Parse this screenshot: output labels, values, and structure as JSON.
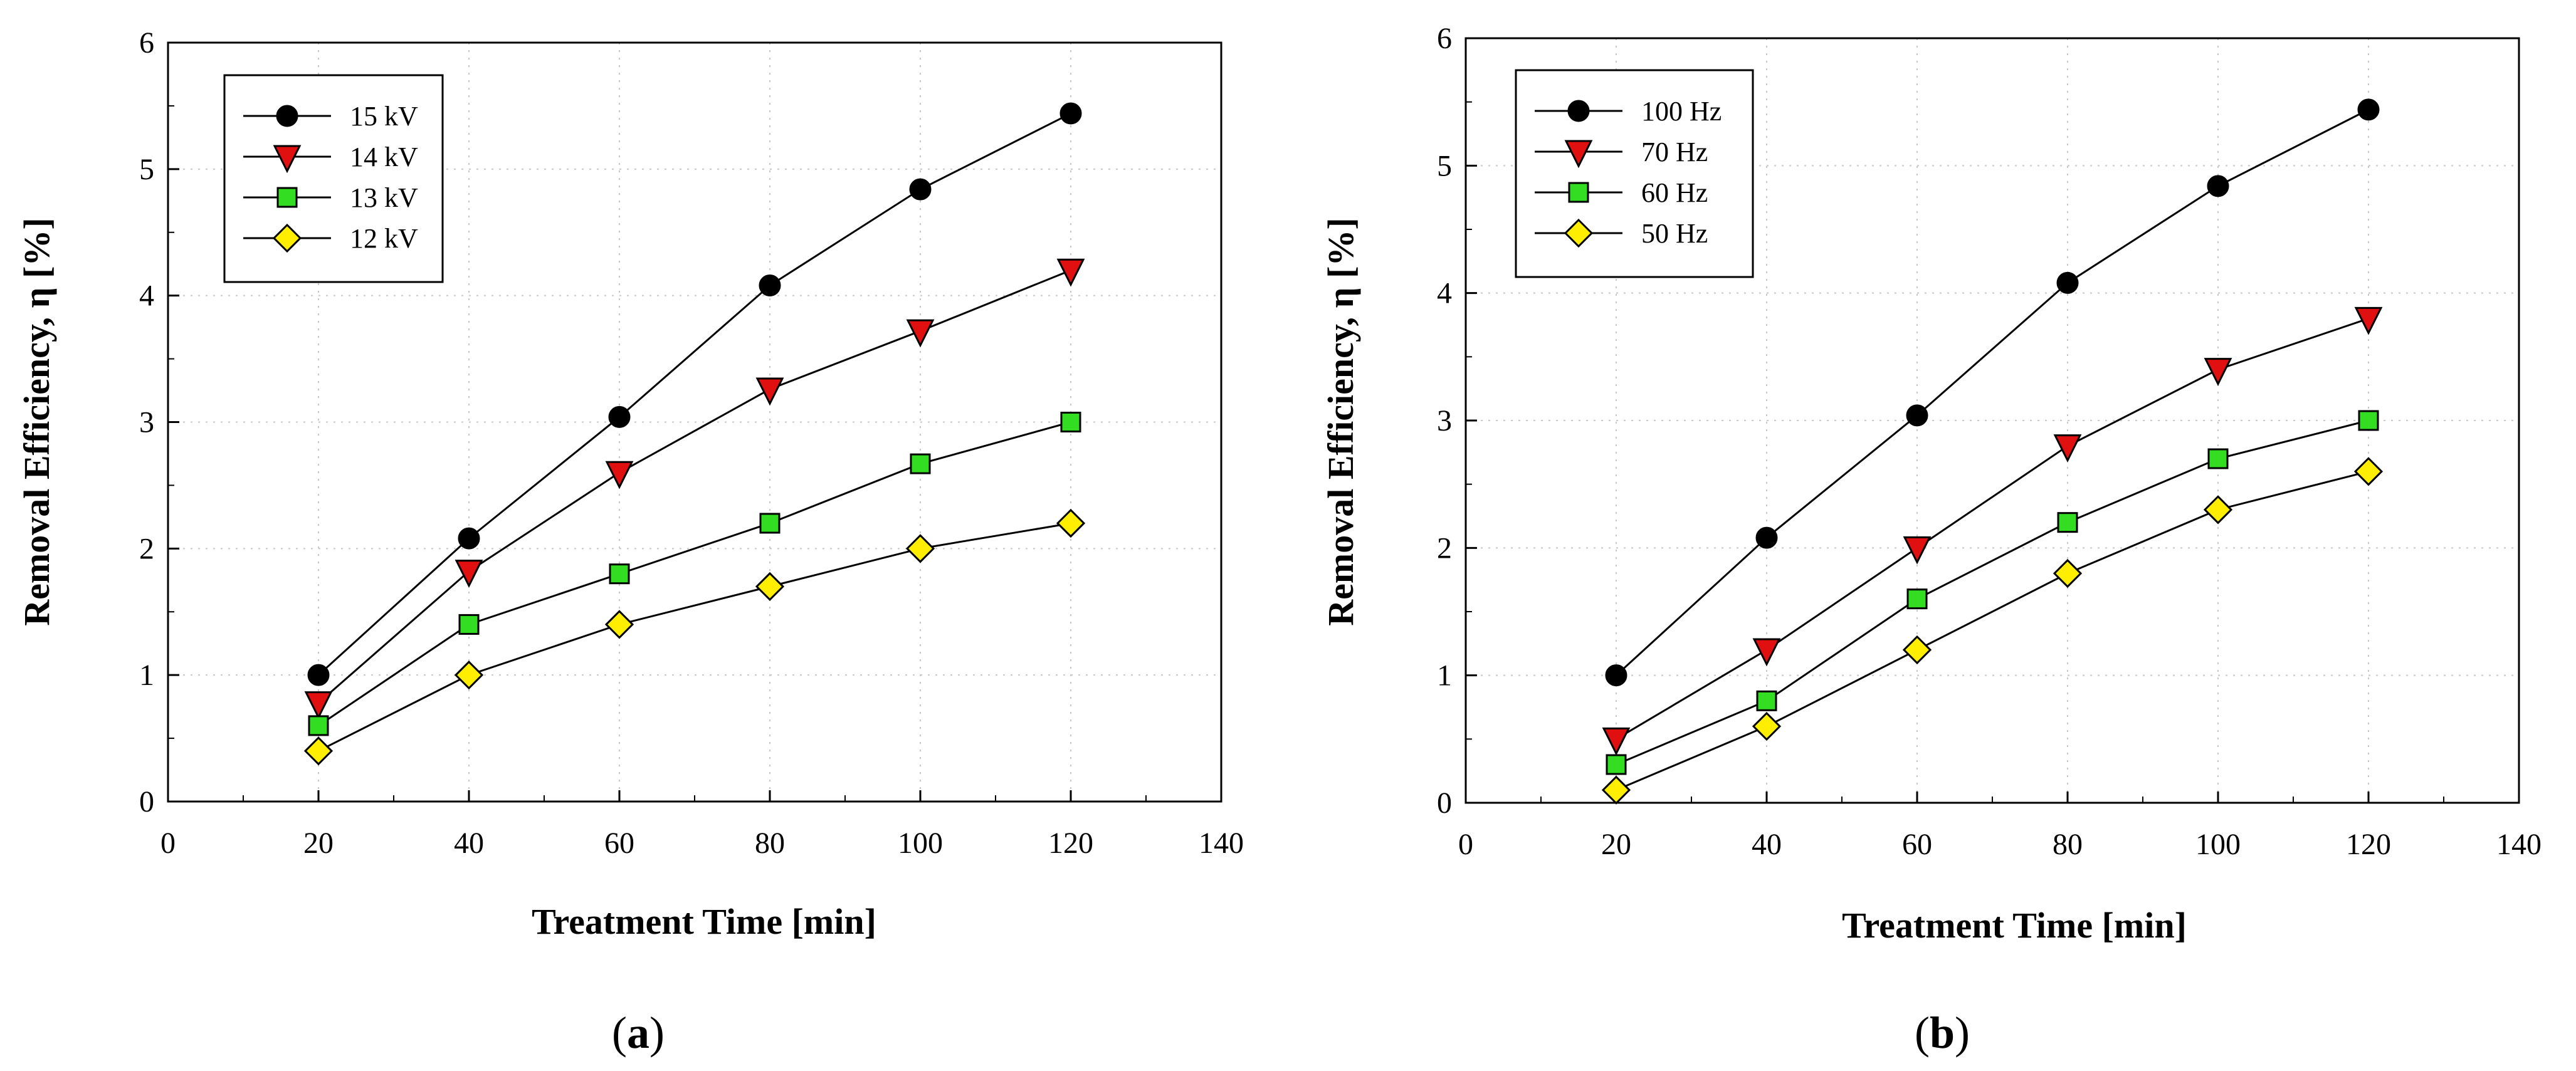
{
  "chart_data": [
    {
      "type": "line",
      "panel_label": "a",
      "xlabel": "Treatment Time [min]",
      "ylabel": "Removal Efficiency, η [%]",
      "xlim": [
        0,
        140
      ],
      "ylim": [
        0,
        6
      ],
      "x_ticks": [
        0,
        20,
        40,
        60,
        80,
        100,
        120,
        140
      ],
      "y_ticks": [
        0,
        1,
        2,
        3,
        4,
        5,
        6
      ],
      "grid": true,
      "legend_position": "top-left",
      "x": [
        20,
        40,
        60,
        80,
        100,
        120
      ],
      "series": [
        {
          "name": "15 kV",
          "marker": "circle",
          "color": "#000000",
          "values": [
            1.0,
            2.08,
            3.04,
            4.08,
            4.84,
            5.44
          ]
        },
        {
          "name": "14 kV",
          "marker": "triangle-down",
          "color": "#e01010",
          "values": [
            0.78,
            1.82,
            2.6,
            3.26,
            3.72,
            4.2
          ]
        },
        {
          "name": "13 kV",
          "marker": "square",
          "color": "#33dd22",
          "values": [
            0.6,
            1.4,
            1.8,
            2.2,
            2.67,
            3.0
          ]
        },
        {
          "name": "12 kV",
          "marker": "diamond",
          "color": "#ffee00",
          "values": [
            0.4,
            1.0,
            1.4,
            1.7,
            2.0,
            2.2
          ]
        }
      ]
    },
    {
      "type": "line",
      "panel_label": "b",
      "xlabel": "Treatment Time [min]",
      "ylabel": "Removal Efficiency, η [%]",
      "xlim": [
        0,
        140
      ],
      "ylim": [
        0,
        6
      ],
      "x_ticks": [
        0,
        20,
        40,
        60,
        80,
        100,
        120,
        140
      ],
      "y_ticks": [
        0,
        1,
        2,
        3,
        4,
        5,
        6
      ],
      "grid": true,
      "legend_position": "top-left",
      "x": [
        20,
        40,
        60,
        80,
        100,
        120
      ],
      "series": [
        {
          "name": "100 Hz",
          "marker": "circle",
          "color": "#000000",
          "values": [
            1.0,
            2.08,
            3.04,
            4.08,
            4.84,
            5.44
          ]
        },
        {
          "name": "70 Hz",
          "marker": "triangle-down",
          "color": "#e01010",
          "values": [
            0.5,
            1.2,
            2.0,
            2.8,
            3.4,
            3.8
          ]
        },
        {
          "name": "60 Hz",
          "marker": "square",
          "color": "#33dd22",
          "values": [
            0.3,
            0.8,
            1.6,
            2.2,
            2.7,
            3.0
          ]
        },
        {
          "name": "50 Hz",
          "marker": "diamond",
          "color": "#ffee00",
          "values": [
            0.1,
            0.6,
            1.2,
            1.8,
            2.3,
            2.6
          ]
        }
      ]
    }
  ]
}
